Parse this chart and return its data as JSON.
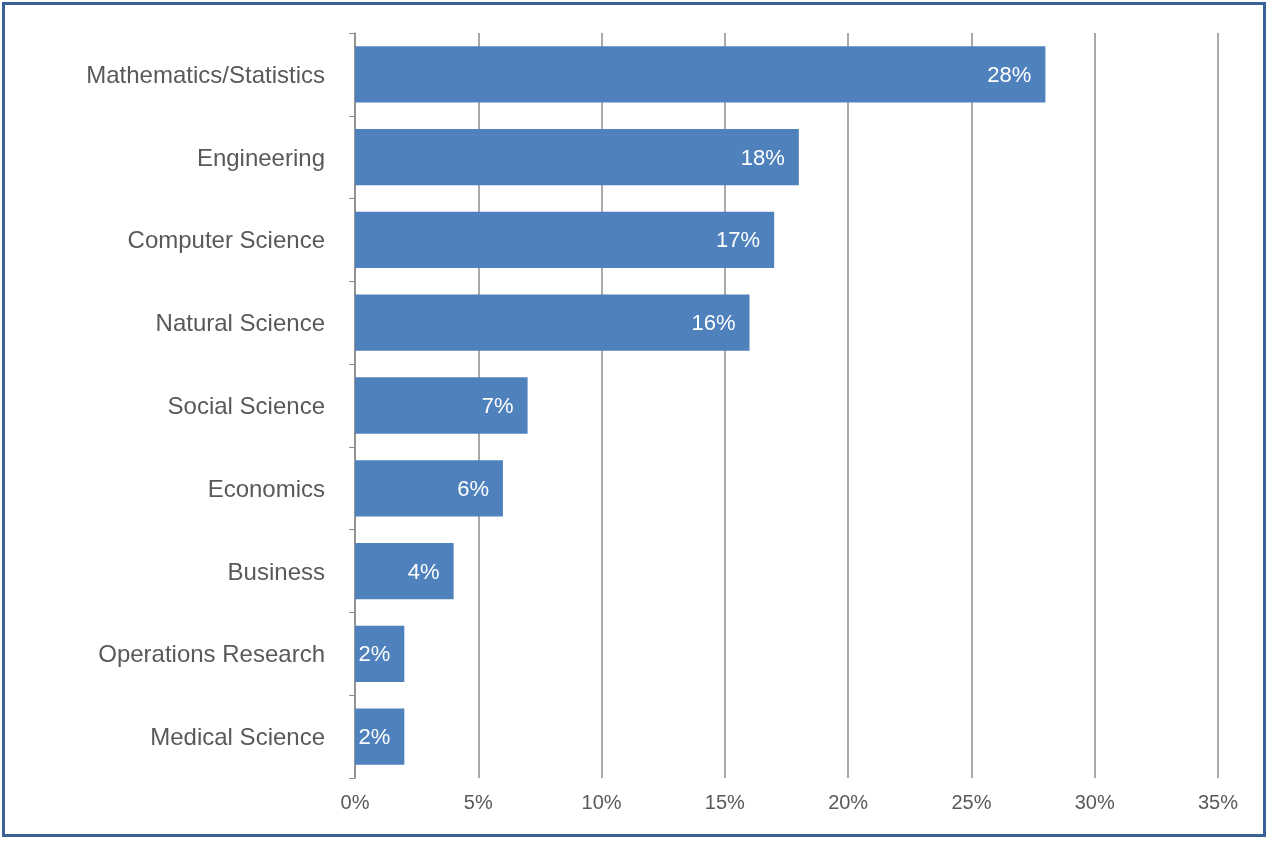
{
  "chart_data": {
    "type": "bar",
    "orientation": "horizontal",
    "categories": [
      "Mathematics/Statistics",
      "Engineering",
      "Computer Science",
      "Natural Science",
      "Social Science",
      "Economics",
      "Business",
      "Operations Research",
      "Medical Science"
    ],
    "values": [
      28,
      18,
      17,
      16,
      7,
      6,
      4,
      2,
      2
    ],
    "value_labels": [
      "28%",
      "18%",
      "17%",
      "16%",
      "7%",
      "6%",
      "4%",
      "2%",
      "2%"
    ],
    "color": "#4f81bd",
    "xlim": [
      0,
      35
    ],
    "xticks": [
      {
        "value": 0,
        "label": "0%"
      },
      {
        "value": 5,
        "label": "5%"
      },
      {
        "value": 10,
        "label": "10%"
      },
      {
        "value": 15,
        "label": "15%"
      },
      {
        "value": 20,
        "label": "20%"
      },
      {
        "value": 25,
        "label": "25%"
      },
      {
        "value": 30,
        "label": "30%"
      },
      {
        "value": 35,
        "label": "35%"
      }
    ],
    "grid": "x"
  }
}
